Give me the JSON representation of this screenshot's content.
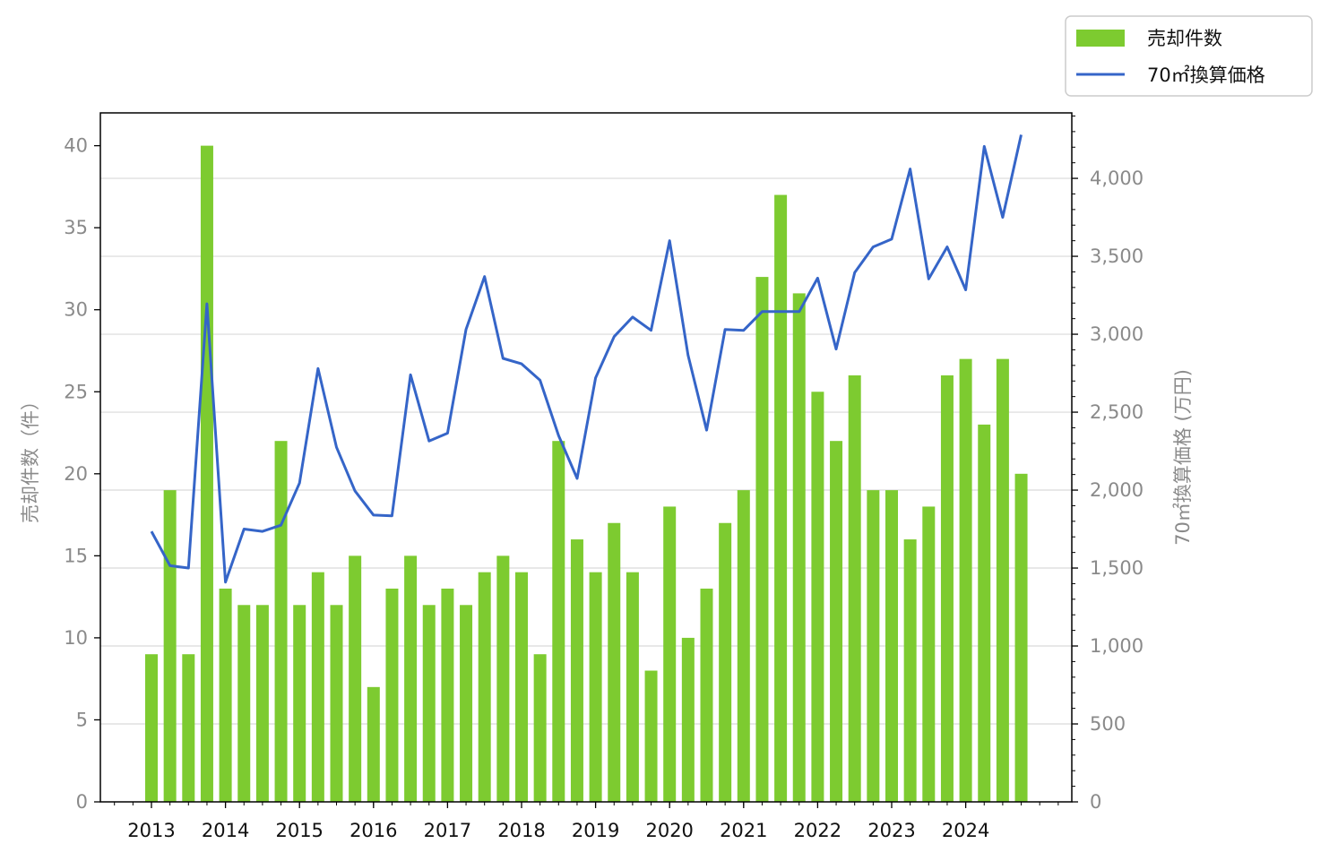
{
  "chart_data": {
    "type": "bar",
    "y_left_label": "売却件数（件）",
    "y_right_label": "70㎡換算価格 (万円)",
    "y_left_ticks": [
      "0",
      "5",
      "10",
      "15",
      "20",
      "25",
      "30",
      "35",
      "40"
    ],
    "y_right_ticks": [
      "0",
      "500",
      "1,000",
      "1,500",
      "2,000",
      "2,500",
      "3,000",
      "3,500",
      "4,000"
    ],
    "x_tick_labels": [
      "2013",
      "2014",
      "2015",
      "2016",
      "2017",
      "2018",
      "2019",
      "2020",
      "2021",
      "2022",
      "2023",
      "2024"
    ],
    "ylim_left": [
      0,
      42
    ],
    "ylim_right": [
      0,
      4420
    ],
    "grid": "horizontal (right axis)",
    "legend_position": "top-right, outside plot",
    "colors": {
      "bars": "#7dcb30",
      "line": "#3565c8"
    },
    "series": [
      {
        "name": "売却件数",
        "type": "bar",
        "axis": "left",
        "x": [
          "2013-Q1",
          "2013-Q2",
          "2013-Q3",
          "2013-Q4",
          "2014-Q1",
          "2014-Q2",
          "2014-Q3",
          "2014-Q4",
          "2015-Q1",
          "2015-Q2",
          "2015-Q3",
          "2015-Q4",
          "2016-Q1",
          "2016-Q2",
          "2016-Q3",
          "2016-Q4",
          "2017-Q1",
          "2017-Q2",
          "2017-Q3",
          "2017-Q4",
          "2018-Q1",
          "2018-Q2",
          "2018-Q3",
          "2018-Q4",
          "2019-Q1",
          "2019-Q2",
          "2019-Q3",
          "2019-Q4",
          "2020-Q1",
          "2020-Q2",
          "2020-Q3",
          "2020-Q4",
          "2021-Q1",
          "2021-Q2",
          "2021-Q3",
          "2021-Q4",
          "2022-Q1",
          "2022-Q2",
          "2022-Q3",
          "2022-Q4",
          "2023-Q1",
          "2023-Q2",
          "2023-Q3",
          "2023-Q4",
          "2024-Q1",
          "2024-Q2",
          "2024-Q3",
          "2024-Q4"
        ],
        "values": [
          9,
          19,
          9,
          40,
          13,
          12,
          12,
          22,
          12,
          14,
          12,
          15,
          7,
          13,
          15,
          12,
          13,
          12,
          14,
          15,
          14,
          9,
          22,
          16,
          14,
          17,
          14,
          8,
          18,
          10,
          13,
          17,
          19,
          32,
          37,
          31,
          25,
          22,
          26,
          19,
          19,
          16,
          18,
          26,
          27,
          23,
          27,
          20
        ]
      },
      {
        "name": "70㎡換算価格",
        "type": "line",
        "axis": "right",
        "x": [
          "2013-Q1",
          "2013-Q2",
          "2013-Q3",
          "2013-Q4",
          "2014-Q1",
          "2014-Q2",
          "2014-Q3",
          "2014-Q4",
          "2015-Q1",
          "2015-Q2",
          "2015-Q3",
          "2015-Q4",
          "2016-Q1",
          "2016-Q2",
          "2016-Q3",
          "2016-Q4",
          "2017-Q1",
          "2017-Q2",
          "2017-Q3",
          "2017-Q4",
          "2018-Q1",
          "2018-Q2",
          "2018-Q3",
          "2018-Q4",
          "2019-Q1",
          "2019-Q2",
          "2019-Q3",
          "2019-Q4",
          "2020-Q1",
          "2020-Q2",
          "2020-Q3",
          "2020-Q4",
          "2021-Q1",
          "2021-Q2",
          "2021-Q3",
          "2021-Q4",
          "2022-Q1",
          "2022-Q2",
          "2022-Q3",
          "2022-Q4",
          "2023-Q1",
          "2023-Q2",
          "2023-Q3",
          "2023-Q4",
          "2024-Q1",
          "2024-Q2",
          "2024-Q3",
          "2024-Q4"
        ],
        "values": [
          1735,
          1515,
          1500,
          3195,
          1410,
          1750,
          1735,
          1775,
          2045,
          2780,
          2275,
          1995,
          1840,
          1835,
          2740,
          2315,
          2365,
          3030,
          3370,
          2845,
          2810,
          2705,
          2350,
          2075,
          2720,
          2985,
          3110,
          3025,
          3600,
          2865,
          2385,
          3030,
          3025,
          3145,
          3145,
          3145,
          3360,
          2905,
          3395,
          3560,
          3610,
          4060,
          3355,
          3560,
          3285,
          4205,
          3750,
          4280
        ]
      }
    ]
  }
}
